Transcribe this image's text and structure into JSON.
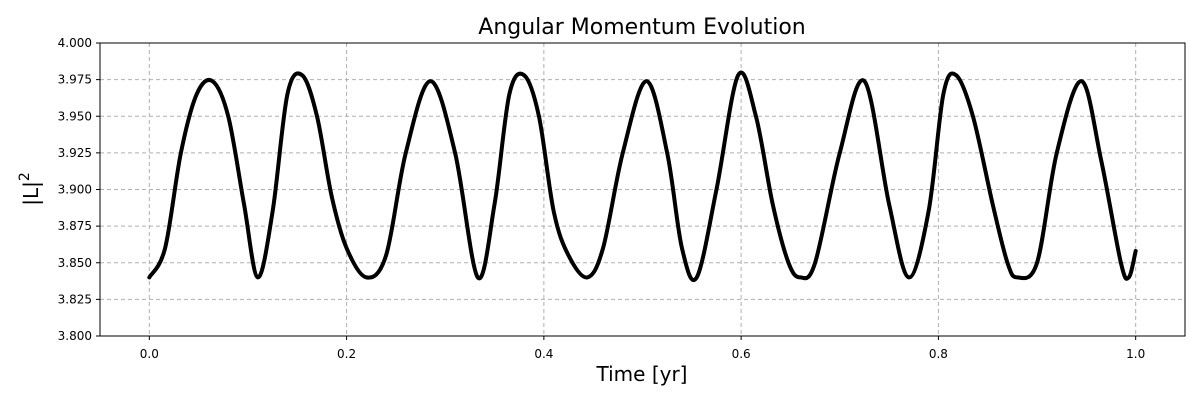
{
  "chart_data": {
    "type": "line",
    "title": "Angular Momentum Evolution",
    "xlabel": "Time [yr]",
    "ylabel": "|L|",
    "ylabel_superscript": "2",
    "xlim": [
      -0.05,
      1.05
    ],
    "ylim": [
      3.8,
      4.0
    ],
    "xticks": [
      0.0,
      0.2,
      0.4,
      0.6,
      0.8,
      1.0
    ],
    "xtick_labels": [
      "0.0",
      "0.2",
      "0.4",
      "0.6",
      "0.8",
      "1.0"
    ],
    "yticks": [
      3.8,
      3.825,
      3.85,
      3.875,
      3.9,
      3.925,
      3.95,
      3.975,
      4.0
    ],
    "ytick_labels": [
      "3.800",
      "3.825",
      "3.850",
      "3.875",
      "3.900",
      "3.925",
      "3.950",
      "3.975",
      "4.000"
    ],
    "grid": true,
    "line_color": "#000000",
    "series": [
      {
        "x": [
          0.0,
          0.016,
          0.032,
          0.048,
          0.064,
          0.08,
          0.096,
          0.11,
          0.125,
          0.14,
          0.155,
          0.17,
          0.185,
          0.2,
          0.22,
          0.24,
          0.26,
          0.285,
          0.31,
          0.333,
          0.35,
          0.365,
          0.38,
          0.395,
          0.41,
          0.425,
          0.444,
          0.46,
          0.48,
          0.504,
          0.525,
          0.54,
          0.555,
          0.575,
          0.597,
          0.615,
          0.632,
          0.648,
          0.66,
          0.675,
          0.7,
          0.725,
          0.75,
          0.77,
          0.79,
          0.805,
          0.818,
          0.835,
          0.855,
          0.87,
          0.88,
          0.9,
          0.92,
          0.945,
          0.965,
          0.985,
          0.993,
          1.0
        ],
        "y": [
          3.84,
          3.86,
          3.925,
          3.965,
          3.974,
          3.95,
          3.89,
          3.84,
          3.885,
          3.965,
          3.978,
          3.95,
          3.895,
          3.86,
          3.84,
          3.855,
          3.925,
          3.974,
          3.925,
          3.84,
          3.89,
          3.965,
          3.978,
          3.95,
          3.885,
          3.855,
          3.84,
          3.86,
          3.925,
          3.974,
          3.925,
          3.86,
          3.84,
          3.9,
          3.978,
          3.95,
          3.89,
          3.85,
          3.84,
          3.85,
          3.925,
          3.974,
          3.89,
          3.84,
          3.885,
          3.965,
          3.978,
          3.95,
          3.89,
          3.85,
          3.84,
          3.85,
          3.925,
          3.974,
          3.92,
          3.85,
          3.84,
          3.858
        ]
      }
    ]
  }
}
